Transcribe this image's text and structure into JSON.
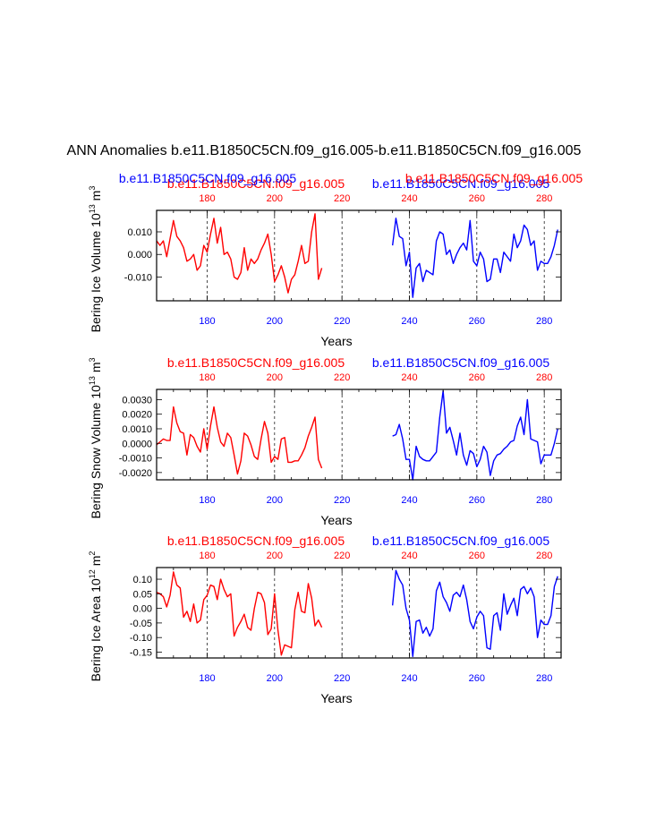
{
  "title": "ANN Anomalies b.e11.B1850C5CN.f09_g16.005-b.e11.B1850C5CN.f09_g16.005",
  "colors": {
    "run1": "#ff0000",
    "run2": "#0000ff",
    "axis": "#000000"
  },
  "xaxis_label": "Years",
  "chart_data": [
    {
      "type": "line",
      "name": "bering-ice-volume",
      "ylabel": "Bering Ice Volume",
      "ylabel_scale": "10",
      "ylabel_exp": "13",
      "ylabel_unit": "m",
      "ylabel_unit_exp": "3",
      "top_left_label": "b.e11.B1850C5CN.f09_g16.005",
      "top_right_label": "b.e11.B1850C5CN.f09_g16.005",
      "top_left_overlap_label": "b.e11.B1850C5CN.f09_g16.005",
      "top_right_overlap_label": "b.e11.B1850C5CN.f09_g16.005",
      "xlim": [
        165,
        285
      ],
      "ylim": [
        -0.0205,
        0.0195
      ],
      "x_ticks": [
        180,
        200,
        220,
        240,
        260,
        280
      ],
      "y_ticks": [
        0.01,
        0.0,
        -0.01
      ],
      "y_tick_labels": [
        "0.010",
        "0.000",
        "-0.010"
      ],
      "vlines": [
        180,
        200,
        220,
        240,
        260,
        280
      ],
      "series": [
        {
          "color_key": "run1",
          "x_start": 165,
          "values": [
            0.006,
            0.004,
            0.006,
            -0.001,
            0.007,
            0.015,
            0.008,
            0.006,
            0.003,
            -0.003,
            -0.002,
            0.0,
            -0.007,
            -0.005,
            0.004,
            0.001,
            0.009,
            0.016,
            0.005,
            0.012,
            0.0,
            0.001,
            -0.002,
            -0.01,
            -0.011,
            -0.008,
            0.003,
            -0.007,
            -0.002,
            -0.004,
            -0.002,
            0.002,
            0.005,
            0.009,
            0.0,
            -0.012,
            -0.009,
            -0.005,
            -0.01,
            -0.017,
            -0.011,
            -0.009,
            -0.003,
            0.004,
            -0.004,
            -0.003,
            0.01,
            0.018,
            -0.011,
            -0.006
          ]
        },
        {
          "color_key": "run2",
          "x_start": 235,
          "values": [
            0.004,
            0.016,
            0.008,
            0.007,
            -0.005,
            0.001,
            -0.019,
            -0.006,
            -0.004,
            -0.012,
            -0.007,
            -0.008,
            -0.009,
            0.006,
            0.01,
            0.009,
            0.0,
            0.002,
            -0.004,
            0.0,
            0.003,
            0.005,
            0.002,
            0.015,
            -0.003,
            -0.005,
            0.001,
            -0.002,
            -0.012,
            -0.011,
            -0.002,
            -0.002,
            -0.008,
            0.001,
            -0.001,
            -0.003,
            0.009,
            0.003,
            0.006,
            0.013,
            0.011,
            0.004,
            0.006,
            -0.007,
            -0.003,
            -0.004,
            -0.004,
            -0.001,
            0.004,
            0.011
          ]
        }
      ]
    },
    {
      "type": "line",
      "name": "bering-snow-volume",
      "ylabel": "Bering Snow Volume",
      "ylabel_scale": "10",
      "ylabel_exp": "13",
      "ylabel_unit": "m",
      "ylabel_unit_exp": "3",
      "top_left_label": "b.e11.B1850C5CN.f09_g16.005",
      "top_right_label": "b.e11.B1850C5CN.f09_g16.005",
      "xlim": [
        165,
        285
      ],
      "ylim": [
        -0.0025,
        0.0037
      ],
      "x_ticks": [
        180,
        200,
        220,
        240,
        260,
        280
      ],
      "y_ticks": [
        0.003,
        0.002,
        0.001,
        0.0,
        -0.001,
        -0.002
      ],
      "y_tick_labels": [
        "0.0030",
        "0.0020",
        "0.0010",
        "0.0000",
        "-0.0010",
        "-0.0020"
      ],
      "vlines": [
        180,
        200,
        220,
        240,
        260,
        280
      ],
      "series": [
        {
          "color_key": "run1",
          "x_start": 165,
          "values": [
            -0.0001,
            0.0001,
            0.0003,
            0.0002,
            0.0002,
            0.0025,
            0.0014,
            0.0008,
            0.0007,
            -0.0008,
            0.0006,
            0.0004,
            -0.0002,
            -0.0006,
            0.001,
            -0.0004,
            0.0012,
            0.0025,
            0.0011,
            0.0001,
            -0.0002,
            0.0007,
            0.0004,
            -0.0008,
            -0.0021,
            -0.0012,
            0.0007,
            0.0005,
            -0.0001,
            -0.0009,
            -0.0011,
            0.0003,
            0.0015,
            0.0007,
            -0.0013,
            -0.0009,
            -0.0011,
            0.0003,
            0.0004,
            -0.0013,
            -0.0013,
            -0.0012,
            -0.0012,
            -0.0008,
            -0.0003,
            0.0005,
            0.0011,
            0.0018,
            -0.0011,
            -0.0017
          ]
        },
        {
          "color_key": "run2",
          "x_start": 235,
          "values": [
            0.0005,
            0.0006,
            0.0013,
            0.0003,
            -0.0011,
            -0.0011,
            -0.0025,
            -0.0002,
            -0.0009,
            -0.0011,
            -0.0012,
            -0.0012,
            -0.0009,
            -0.0006,
            0.0018,
            0.0036,
            0.0007,
            0.0011,
            0.0002,
            -0.0008,
            0.0007,
            -0.0008,
            -0.0015,
            -0.0005,
            -0.0007,
            -0.0016,
            -0.0011,
            -0.0002,
            -0.0006,
            -0.0022,
            -0.0012,
            -0.0008,
            -0.0007,
            -0.0004,
            -0.0002,
            0.0001,
            0.0002,
            0.0012,
            0.0018,
            0.0006,
            0.003,
            0.0003,
            0.0002,
            0.0001,
            -0.0014,
            -0.0008,
            -0.0008,
            -0.0008,
            0.0,
            0.001
          ]
        }
      ]
    },
    {
      "type": "line",
      "name": "bering-ice-area",
      "ylabel": "Bering Ice Area",
      "ylabel_scale": "10",
      "ylabel_exp": "12",
      "ylabel_unit": "m",
      "ylabel_unit_exp": "2",
      "top_left_label": "b.e11.B1850C5CN.f09_g16.005",
      "top_right_label": "b.e11.B1850C5CN.f09_g16.005",
      "xlim": [
        165,
        285
      ],
      "ylim": [
        -0.17,
        0.14
      ],
      "x_ticks": [
        180,
        200,
        220,
        240,
        260,
        280
      ],
      "y_ticks": [
        0.1,
        0.05,
        0.0,
        -0.05,
        -0.1,
        -0.15
      ],
      "y_tick_labels": [
        "0.10",
        "0.05",
        "0.00",
        "-0.05",
        "-0.10",
        "-0.15"
      ],
      "vlines": [
        180,
        200,
        220,
        240,
        260,
        280
      ],
      "series": [
        {
          "color_key": "run1",
          "x_start": 165,
          "values": [
            0.055,
            0.05,
            0.04,
            0.005,
            0.045,
            0.125,
            0.08,
            0.07,
            -0.03,
            -0.01,
            -0.045,
            0.015,
            -0.05,
            -0.04,
            0.03,
            0.045,
            0.08,
            0.075,
            0.03,
            0.1,
            0.065,
            0.04,
            0.05,
            -0.095,
            -0.065,
            -0.045,
            -0.02,
            -0.065,
            -0.075,
            0.0,
            0.055,
            0.05,
            0.02,
            -0.09,
            -0.07,
            0.05,
            -0.075,
            -0.16,
            -0.125,
            -0.13,
            -0.135,
            -0.005,
            0.055,
            -0.01,
            -0.015,
            0.085,
            0.035,
            -0.06,
            -0.04,
            -0.065
          ]
        },
        {
          "color_key": "run2",
          "x_start": 235,
          "values": [
            0.01,
            0.13,
            0.1,
            0.08,
            0.0,
            -0.04,
            -0.165,
            -0.045,
            -0.04,
            -0.085,
            -0.065,
            -0.095,
            -0.07,
            0.06,
            0.09,
            0.04,
            0.02,
            -0.01,
            0.045,
            0.055,
            0.04,
            0.08,
            0.03,
            -0.045,
            -0.07,
            -0.03,
            -0.01,
            -0.025,
            -0.135,
            -0.14,
            -0.025,
            -0.015,
            -0.075,
            0.05,
            -0.02,
            0.01,
            0.035,
            -0.025,
            0.065,
            0.075,
            0.05,
            0.07,
            0.04,
            -0.1,
            -0.04,
            -0.055,
            -0.055,
            -0.025,
            0.075,
            0.11
          ]
        }
      ]
    }
  ]
}
